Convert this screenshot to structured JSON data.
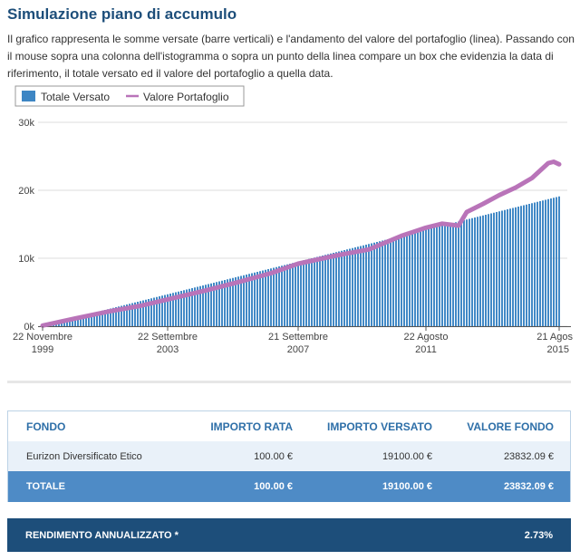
{
  "header": {
    "title": "Simulazione piano di accumulo",
    "description": "Il grafico rappresenta le somme versate (barre verticali) e l'andamento del valore del portafoglio (linea). Passando con il mouse sopra una colonna dell'istogramma o sopra un punto della linea compare un box che evidenzia la data di riferimento, il totale versato ed il valore del portafoglio a quella data."
  },
  "colors": {
    "bar": "#3d86c4",
    "line": "#b974b9",
    "table_header_text": "#2e6fa8",
    "total_row": "#4e8bc6",
    "yield_bar": "#1d4e7a"
  },
  "chart_data": {
    "type": "bar",
    "title": "",
    "legend_position": "top-left",
    "grid": true,
    "ylim": [
      0,
      30000
    ],
    "y_tick_labels": [
      "0k",
      "10k",
      "20k",
      "30k"
    ],
    "x_tick_labels": [
      {
        "date": "22 Novembre",
        "year": "1999"
      },
      {
        "date": "22 Settembre",
        "year": "2003"
      },
      {
        "date": "21 Settembre",
        "year": "2007"
      },
      {
        "date": "22 Agosto",
        "year": "2011"
      },
      {
        "date": "21 Agos",
        "year": "2015"
      }
    ],
    "x_tick_month_index": [
      0,
      46,
      94,
      141,
      190
    ],
    "monthly_installment": 100,
    "months": 191,
    "series": [
      {
        "name": "Totale Versato",
        "type": "bar",
        "start": 100,
        "end": 19100
      },
      {
        "name": "Valore Portafoglio",
        "type": "line",
        "points": [
          [
            0,
            100
          ],
          [
            12,
            1150
          ],
          [
            24,
            2150
          ],
          [
            36,
            3000
          ],
          [
            46,
            3950
          ],
          [
            60,
            5250
          ],
          [
            72,
            6500
          ],
          [
            84,
            7800
          ],
          [
            94,
            9200
          ],
          [
            108,
            10400
          ],
          [
            120,
            11300
          ],
          [
            126,
            12300
          ],
          [
            132,
            13300
          ],
          [
            141,
            14500
          ],
          [
            147,
            15100
          ],
          [
            153,
            14800
          ],
          [
            156,
            16800
          ],
          [
            162,
            18000
          ],
          [
            168,
            19300
          ],
          [
            174,
            20400
          ],
          [
            180,
            21800
          ],
          [
            186,
            24000
          ],
          [
            188,
            24200
          ],
          [
            190,
            23832
          ]
        ]
      }
    ]
  },
  "table": {
    "headers": {
      "fund": "FONDO",
      "installment": "IMPORTO RATA",
      "paid": "IMPORTO VERSATO",
      "value": "VALORE FONDO"
    },
    "rows": [
      {
        "fund": "Eurizon Diversificato Etico",
        "installment": "100.00 €",
        "paid": "19100.00 €",
        "value": "23832.09 €"
      }
    ],
    "total": {
      "label": "TOTALE",
      "installment": "100.00 €",
      "paid": "19100.00 €",
      "value": "23832.09 €"
    }
  },
  "yield": {
    "label": "RENDIMENTO ANNUALIZZATO *",
    "value": "2.73%"
  }
}
